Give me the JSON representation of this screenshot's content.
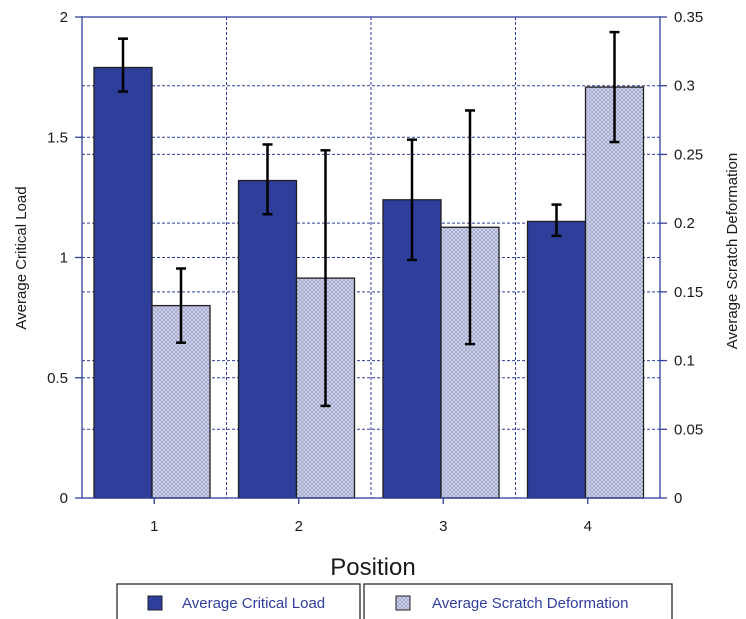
{
  "chart_data": {
    "type": "bar",
    "xlabel": "Position",
    "categories": [
      "1",
      "2",
      "3",
      "4"
    ],
    "y_left": {
      "label": "Average Critical Load",
      "range": [
        0,
        2
      ],
      "ticks": [
        "0",
        "0.5",
        "1",
        "1.5",
        "2"
      ]
    },
    "y_right": {
      "label": "Average Scratch Deformation",
      "range": [
        0,
        0.35
      ],
      "ticks": [
        "0",
        "0.05",
        "0.1",
        "0.15",
        "0.2",
        "0.25",
        "0.3",
        "0.35"
      ]
    },
    "series": [
      {
        "name": "Average Critical Load",
        "axis": "left",
        "color": "#2e3e9a",
        "pattern": "solid",
        "values": [
          1.79,
          1.32,
          1.24,
          1.15
        ],
        "error_low": [
          1.69,
          1.18,
          0.99,
          1.09
        ],
        "error_high": [
          1.91,
          1.47,
          1.49,
          1.22
        ]
      },
      {
        "name": "Average Scratch Deformation",
        "axis": "right",
        "color": "#c4c8e2",
        "pattern": "crosshatch",
        "values": [
          0.14,
          0.16,
          0.197,
          0.299
        ],
        "error_low": [
          0.113,
          0.067,
          0.112,
          0.259
        ],
        "error_high": [
          0.167,
          0.253,
          0.282,
          0.339
        ]
      }
    ],
    "grid": true,
    "legend": "bottom"
  }
}
